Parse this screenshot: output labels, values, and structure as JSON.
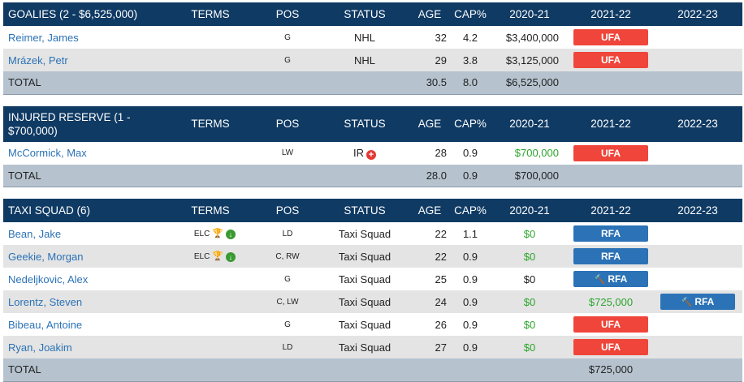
{
  "columns": {
    "terms": "TERMS",
    "pos": "POS",
    "status": "STATUS",
    "age": "AGE",
    "cap": "CAP%",
    "y1": "2020-21",
    "y2": "2021-22",
    "y3": "2022-23"
  },
  "goalies": {
    "title": "GOALIES (2 - $6,525,000)",
    "rows": [
      {
        "name": "Reimer, James",
        "terms": "",
        "pos": "G",
        "status": "NHL",
        "age": "32",
        "cap": "4.2",
        "y1": "$3,400,000",
        "y2": "UFA"
      },
      {
        "name": "Mrázek, Petr",
        "terms": "",
        "pos": "G",
        "status": "NHL",
        "age": "29",
        "cap": "3.8",
        "y1": "$3,125,000",
        "y2": "UFA"
      }
    ],
    "total": {
      "label": "TOTAL",
      "age": "30.5",
      "cap": "8.0",
      "y1": "$6,525,000"
    }
  },
  "injured": {
    "title": "INJURED RESERVE (1 - $700,000)",
    "rows": [
      {
        "name": "McCormick, Max",
        "pos": "LW",
        "status": "IR",
        "age": "28",
        "cap": "0.9",
        "y1": "$700,000",
        "y2": "UFA"
      }
    ],
    "total": {
      "label": "TOTAL",
      "age": "28.0",
      "cap": "0.9",
      "y1": "$700,000"
    }
  },
  "taxi": {
    "title": "TAXI SQUAD (6)",
    "rows": [
      {
        "name": "Bean, Jake",
        "terms": "ELC",
        "pos": "LD",
        "status": "Taxi Squad",
        "age": "22",
        "cap": "1.1",
        "y1": "$0",
        "y2": "RFA"
      },
      {
        "name": "Geekie, Morgan",
        "terms": "ELC",
        "pos": "C, RW",
        "status": "Taxi Squad",
        "age": "22",
        "cap": "0.9",
        "y1": "$0",
        "y2": "RFA"
      },
      {
        "name": "Nedeljkovic, Alex",
        "pos": "G",
        "status": "Taxi Squad",
        "age": "25",
        "cap": "0.9",
        "y1": "$0",
        "y2": "RFA"
      },
      {
        "name": "Lorentz, Steven",
        "pos": "C, LW",
        "status": "Taxi Squad",
        "age": "24",
        "cap": "0.9",
        "y1": "$0",
        "y2": "$725,000",
        "y3": "RFA"
      },
      {
        "name": "Bibeau, Antoine",
        "pos": "G",
        "status": "Taxi Squad",
        "age": "26",
        "cap": "0.9",
        "y1": "$0",
        "y2": "UFA"
      },
      {
        "name": "Ryan, Joakim",
        "pos": "LD",
        "status": "Taxi Squad",
        "age": "27",
        "cap": "0.9",
        "y1": "$0",
        "y2": "UFA"
      }
    ],
    "total": {
      "label": "TOTAL",
      "y2": "$725,000"
    }
  },
  "colors": {
    "header_bg": "#0f3a63",
    "ufa": "#f0453a",
    "rfa": "#2b72b6",
    "link": "#2b72b6",
    "green": "#2ca52c",
    "total_bg": "#b6c3cf",
    "alt_row": "#e4e4e4"
  },
  "icons": [
    "trophy-icon",
    "down-arrow-icon",
    "ir-plus-icon",
    "gavel-icon"
  ]
}
